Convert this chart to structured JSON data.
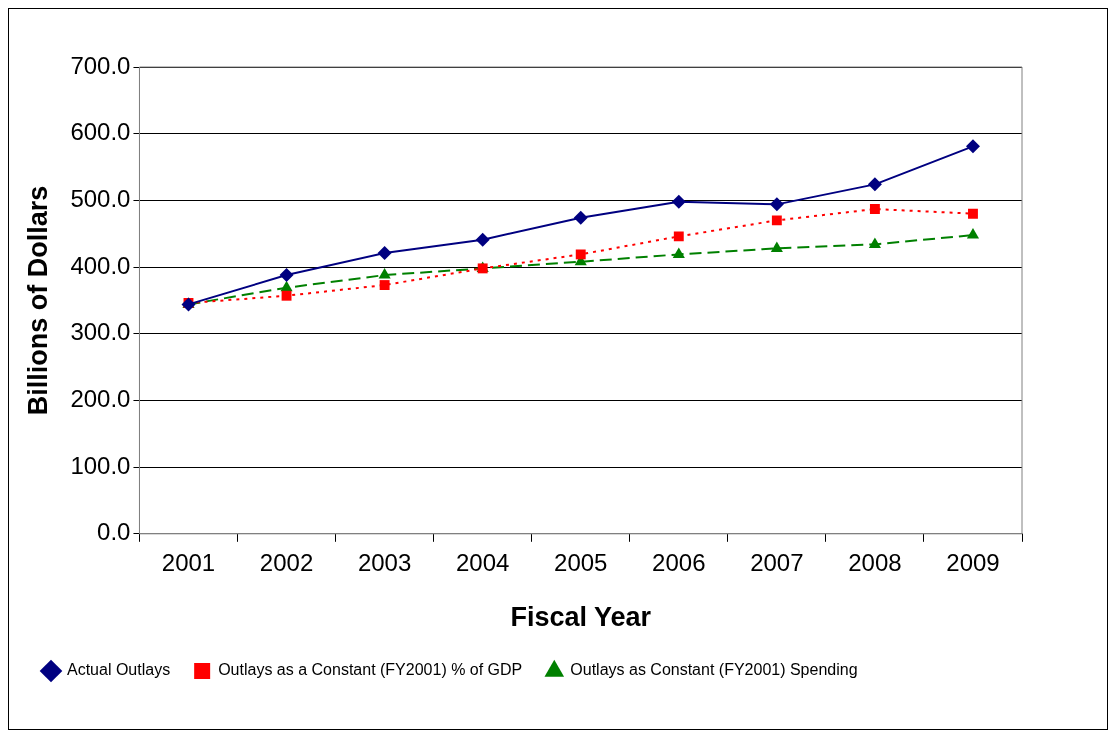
{
  "chart_data": {
    "type": "line",
    "xlabel": "Fiscal Year",
    "ylabel": "Billions of Dollars",
    "categories": [
      "2001",
      "2002",
      "2003",
      "2004",
      "2005",
      "2006",
      "2007",
      "2008",
      "2009"
    ],
    "series": [
      {
        "name": "Actual Outlays",
        "color": "#000080",
        "marker": "diamond",
        "line_style": "solid",
        "values": [
          344,
          388,
          421,
          441,
          474,
          498,
          494,
          524,
          581
        ]
      },
      {
        "name": "Outlays as a Constant (FY2001) % of GDP",
        "color": "#ff0000",
        "marker": "square",
        "line_style": "dotted",
        "values": [
          346,
          357,
          373,
          398,
          419,
          446,
          470,
          487,
          480
        ]
      },
      {
        "name": "Outlays as Constant (FY2001) Spending",
        "color": "#008000",
        "marker": "triangle",
        "line_style": "dashed",
        "values": [
          344,
          369,
          388,
          398,
          408,
          419,
          428,
          434,
          448
        ]
      }
    ],
    "ylim": [
      0,
      700
    ],
    "yticks": [
      {
        "value": 0,
        "label": "0.0"
      },
      {
        "value": 100,
        "label": "100.0"
      },
      {
        "value": 200,
        "label": "200.0"
      },
      {
        "value": 300,
        "label": "300.0"
      },
      {
        "value": 400,
        "label": "400.0"
      },
      {
        "value": 500,
        "label": "500.0"
      },
      {
        "value": 600,
        "label": "600.0"
      },
      {
        "value": 700,
        "label": "700.0"
      }
    ],
    "grid": "y",
    "legend": "bottom"
  }
}
